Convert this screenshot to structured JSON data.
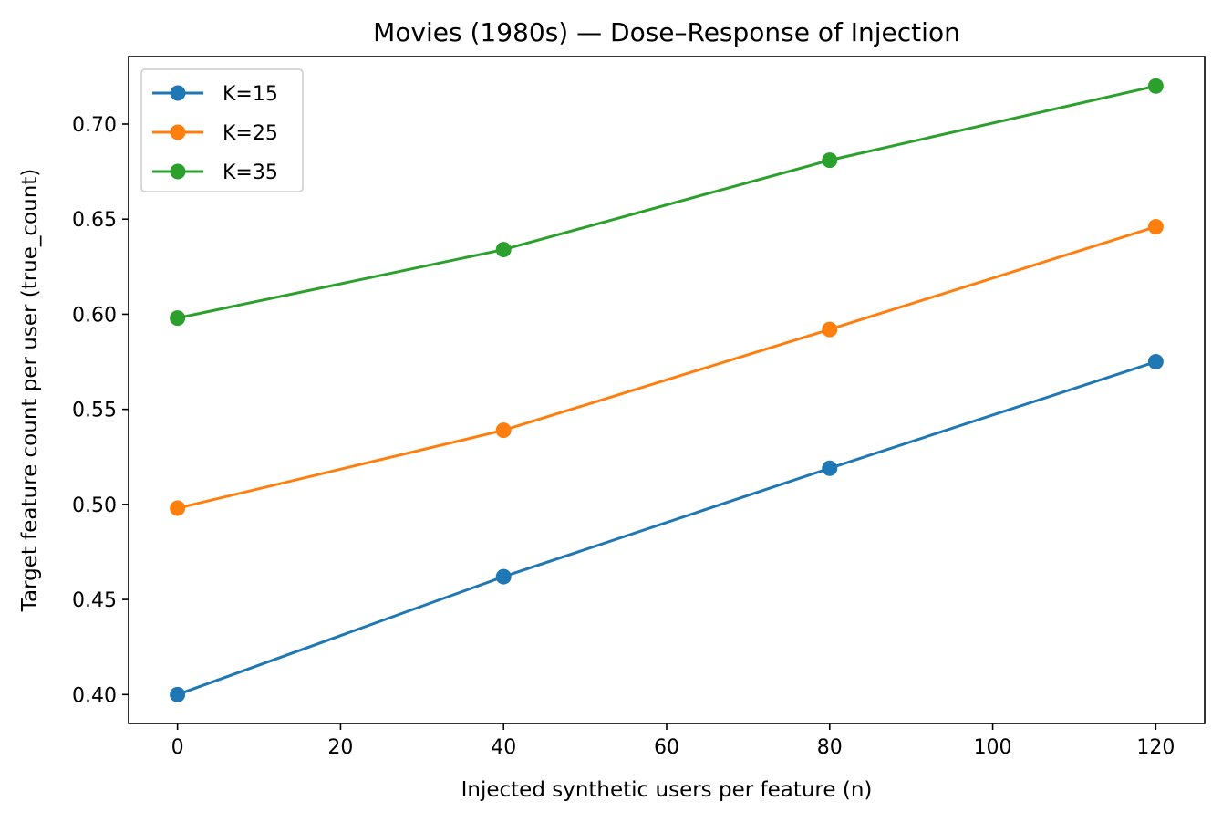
{
  "chart_data": {
    "type": "line",
    "title": "Movies (1980s) — Dose–Response of Injection",
    "xlabel": "Injected synthetic users per feature (n)",
    "ylabel": "Target feature count per user (true_count)",
    "x": [
      0,
      40,
      80,
      120
    ],
    "xlim": [
      -6,
      126
    ],
    "ylim": [
      0.3848,
      0.7355
    ],
    "xticks": [
      0,
      20,
      40,
      60,
      80,
      100,
      120
    ],
    "yticks": [
      0.4,
      0.45,
      0.5,
      0.55,
      0.6,
      0.65,
      0.7
    ],
    "ytick_labels": [
      "0.40",
      "0.45",
      "0.50",
      "0.55",
      "0.60",
      "0.65",
      "0.70"
    ],
    "grid": false,
    "legend_position": "top-left",
    "marker": "circle",
    "series": [
      {
        "name": "K=15",
        "color": "#1f77b4",
        "values": [
          0.4,
          0.462,
          0.519,
          0.575
        ]
      },
      {
        "name": "K=25",
        "color": "#ff7f0e",
        "values": [
          0.498,
          0.539,
          0.592,
          0.646
        ]
      },
      {
        "name": "K=35",
        "color": "#2ca02c",
        "values": [
          0.598,
          0.634,
          0.681,
          0.72
        ]
      }
    ]
  }
}
